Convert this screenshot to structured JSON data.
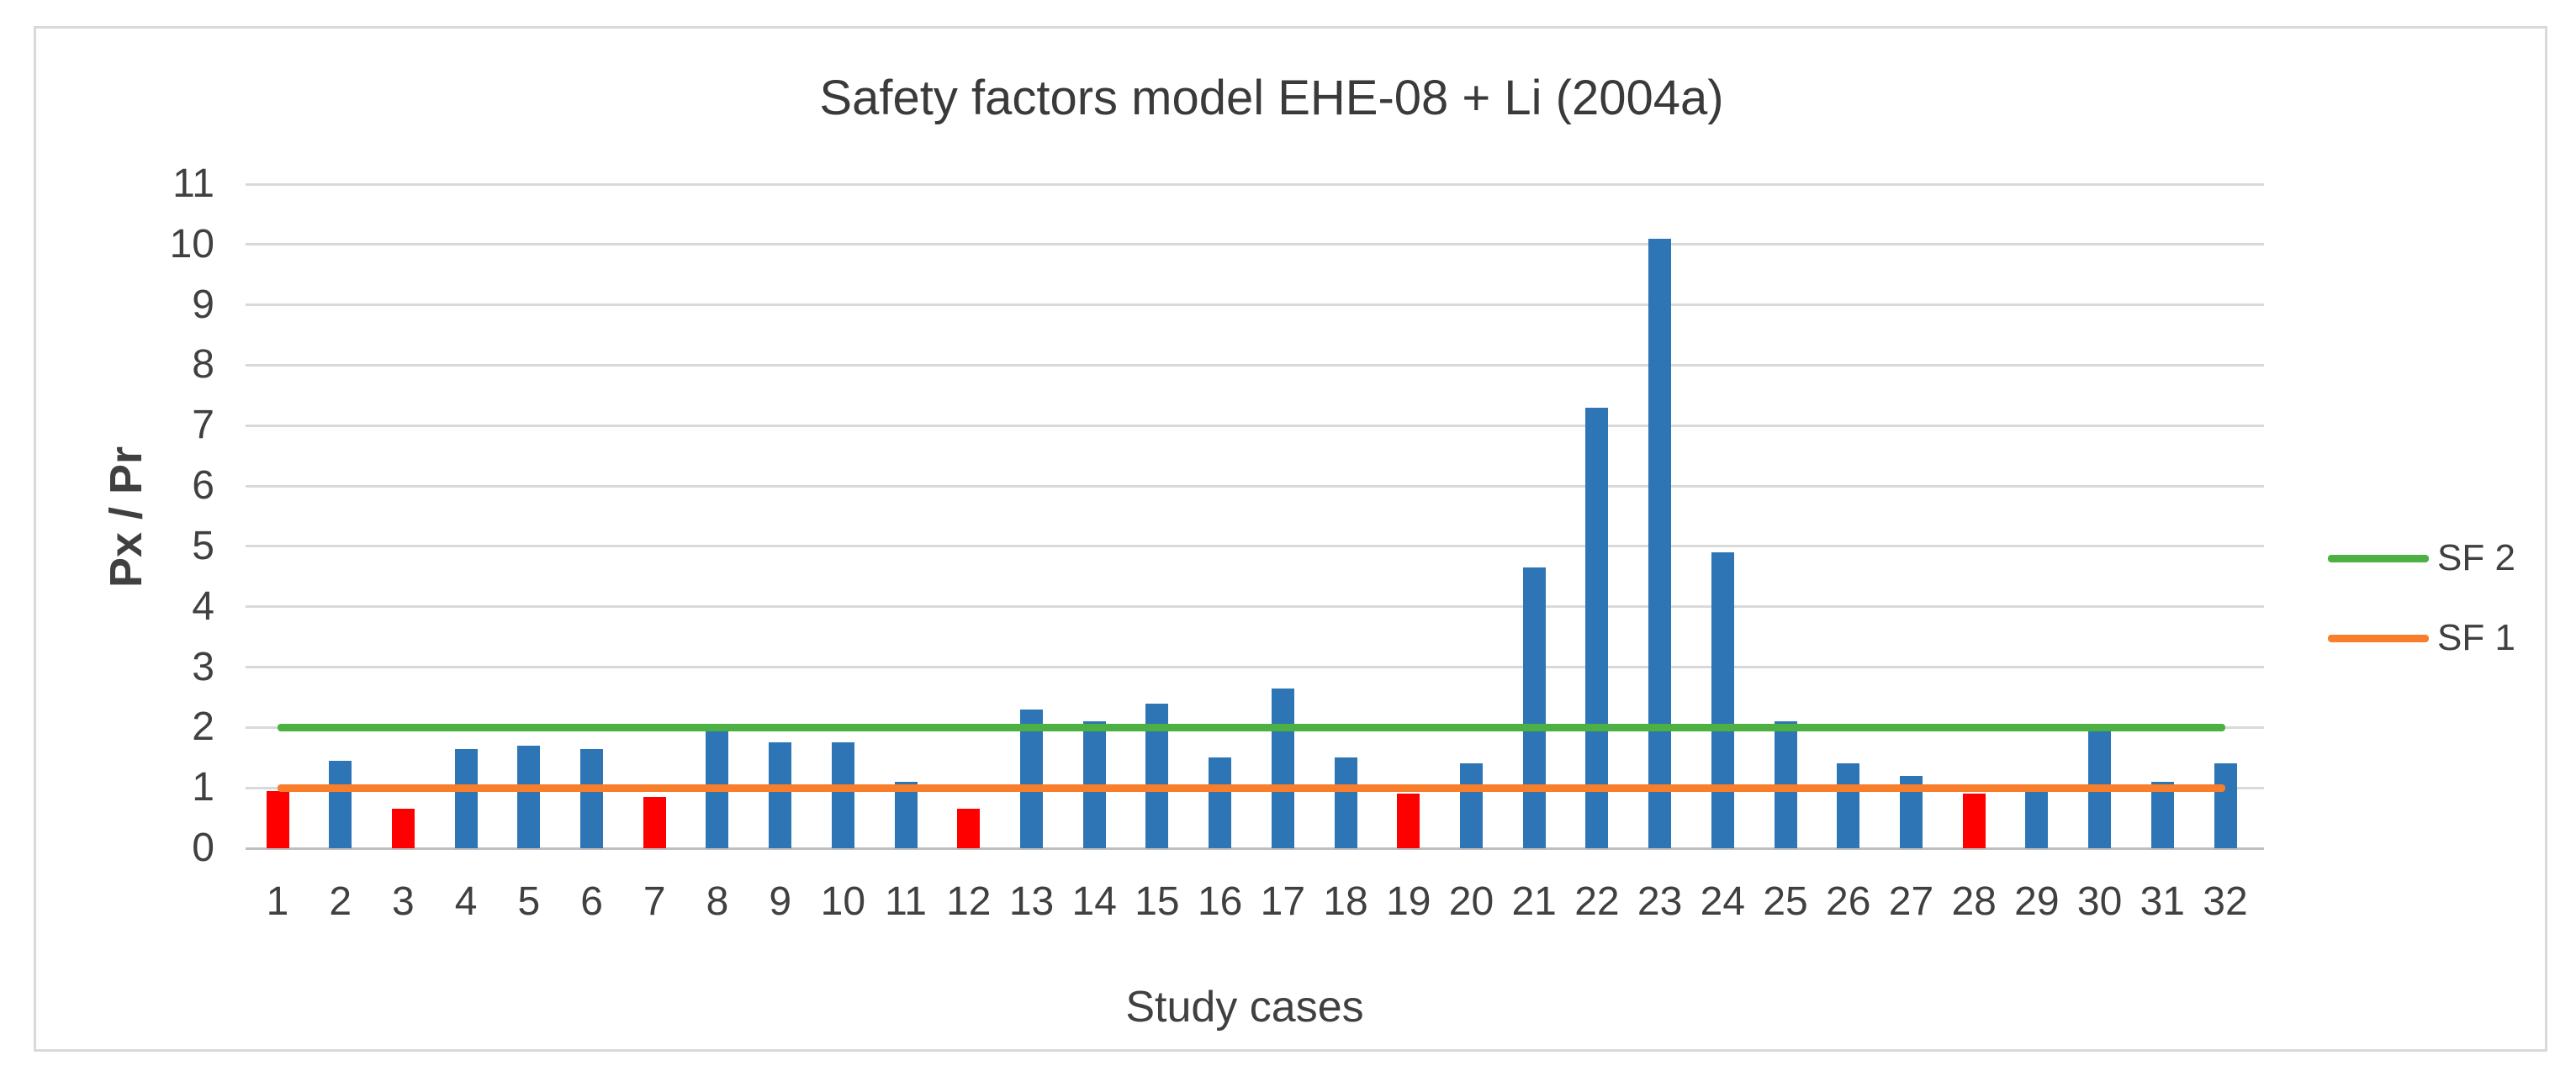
{
  "chart_data": {
    "type": "bar",
    "title": "Safety factors model EHE-08 + Li (2004a)",
    "xlabel": "Study cases",
    "ylabel": "Px / Pr",
    "ylim": [
      0,
      11
    ],
    "ytick_step": 1,
    "grid": true,
    "legend_position": "right",
    "categories": [
      "1",
      "2",
      "3",
      "4",
      "5",
      "6",
      "7",
      "8",
      "9",
      "10",
      "11",
      "12",
      "13",
      "14",
      "15",
      "16",
      "17",
      "18",
      "19",
      "20",
      "21",
      "22",
      "23",
      "24",
      "25",
      "26",
      "27",
      "28",
      "29",
      "30",
      "31",
      "32"
    ],
    "values": [
      0.95,
      1.45,
      0.65,
      1.65,
      1.7,
      1.65,
      0.85,
      1.95,
      1.75,
      1.75,
      1.1,
      0.65,
      2.3,
      2.1,
      2.4,
      1.5,
      2.65,
      1.5,
      0.9,
      1.4,
      4.65,
      7.3,
      10.1,
      4.9,
      2.1,
      1.4,
      1.2,
      0.9,
      0.95,
      1.95,
      1.1,
      1.4
    ],
    "bar_default_color": "#2E75B6",
    "bar_highlight_color": "#FF0000",
    "highlighted_categories": [
      "1",
      "3",
      "7",
      "12",
      "19",
      "28"
    ],
    "reference_lines": [
      {
        "name": "SF 2",
        "value": 2,
        "color": "#4CB043"
      },
      {
        "name": "SF 1",
        "value": 1,
        "color": "#F87E2B"
      }
    ],
    "colors": {
      "gridline": "#d9d9d9",
      "axis_line": "#bfbfbf",
      "text": "#404040",
      "border": "#d9d9d9"
    }
  }
}
